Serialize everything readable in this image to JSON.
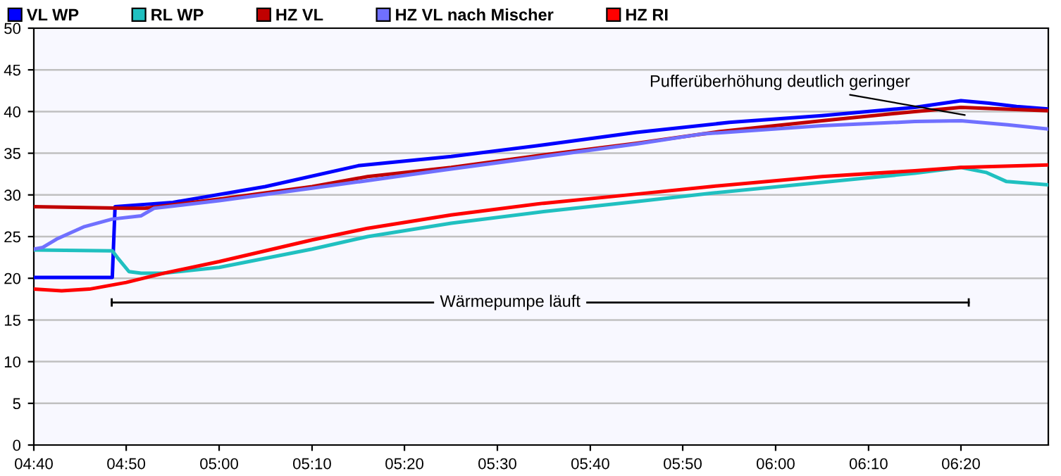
{
  "chart_data": {
    "type": "line",
    "series": [
      {
        "name": "VL WP",
        "color": "#0000ff",
        "x": [
          4.667,
          4.808,
          4.813,
          4.917,
          5.083,
          5.25,
          5.417,
          5.583,
          5.75,
          5.917,
          6.083,
          6.25,
          6.333,
          6.383,
          6.433,
          6.49
        ],
        "values": [
          20.1,
          20.1,
          28.6,
          29.1,
          31.0,
          33.5,
          34.6,
          36.0,
          37.5,
          38.7,
          39.5,
          40.5,
          41.3,
          41.0,
          40.6,
          40.3
        ]
      },
      {
        "name": "RL WP",
        "color": "#20c0c0",
        "x": [
          4.667,
          4.808,
          4.817,
          4.838,
          4.86,
          4.9,
          5.0,
          5.167,
          5.267,
          5.417,
          5.583,
          5.75,
          5.883,
          6.083,
          6.25,
          6.333,
          6.378,
          6.415,
          6.49
        ],
        "values": [
          23.4,
          23.3,
          22.5,
          20.8,
          20.6,
          20.6,
          21.3,
          23.5,
          25.0,
          26.6,
          28.0,
          29.2,
          30.2,
          31.5,
          32.6,
          33.3,
          32.7,
          31.6,
          31.2
        ]
      },
      {
        "name": "HZ VL",
        "color": "#c00000",
        "x": [
          4.667,
          4.833,
          4.867,
          5.0,
          5.167,
          5.267,
          5.417,
          5.583,
          5.75,
          5.9,
          6.083,
          6.25,
          6.333,
          6.49
        ],
        "values": [
          28.6,
          28.4,
          28.4,
          29.5,
          31.0,
          32.2,
          33.3,
          34.8,
          36.2,
          37.6,
          38.9,
          40.0,
          40.5,
          40.1
        ]
      },
      {
        "name": "HZ VL nach Mischer",
        "color": "#7070ff",
        "x": [
          4.667,
          4.683,
          4.708,
          4.758,
          4.808,
          4.86,
          4.883,
          5.0,
          5.167,
          5.417,
          5.583,
          5.75,
          5.867,
          6.083,
          6.25,
          6.333,
          6.417,
          6.49
        ],
        "values": [
          23.5,
          23.7,
          24.7,
          26.2,
          27.1,
          27.5,
          28.4,
          29.3,
          30.8,
          33.1,
          34.6,
          36.1,
          37.3,
          38.3,
          38.8,
          38.9,
          38.4,
          37.9
        ]
      },
      {
        "type": "line",
        "color": "#000000",
        "x": [
          4.807,
          6.347
        ],
        "values": [
          17.1,
          17.1
        ],
        "errors": [
          0.5,
          0.5
        ]
      },
      {
        "name": "HZ RI",
        "color": "#ff0000",
        "x": [
          4.667,
          4.717,
          4.767,
          4.833,
          4.9,
          5.0,
          5.167,
          5.267,
          5.417,
          5.583,
          5.75,
          5.883,
          6.083,
          6.25,
          6.333,
          6.49
        ],
        "values": [
          18.7,
          18.5,
          18.7,
          19.5,
          20.6,
          22.0,
          24.6,
          26.0,
          27.6,
          29.0,
          30.1,
          31.0,
          32.2,
          32.9,
          33.3,
          33.6
        ]
      }
    ],
    "xlim": [
      4.667,
      6.49
    ],
    "xticks": [
      {
        "value": 4.667,
        "label": "04:40"
      },
      {
        "value": 4.833,
        "label": "04:50"
      },
      {
        "value": 5.0,
        "label": "05:00"
      },
      {
        "value": 5.167,
        "label": "05:10"
      },
      {
        "value": 5.333,
        "label": "05:20"
      },
      {
        "value": 5.5,
        "label": "05:30"
      },
      {
        "value": 5.667,
        "label": "05:40"
      },
      {
        "value": 5.833,
        "label": "05:50"
      },
      {
        "value": 6.0,
        "label": "06:00"
      },
      {
        "value": 6.167,
        "label": "06:10"
      },
      {
        "value": 6.333,
        "label": "06:20"
      }
    ],
    "ylim": [
      0,
      50
    ],
    "yticks": [
      0,
      5,
      10,
      15,
      20,
      25,
      30,
      35,
      40,
      45,
      50
    ],
    "grid": "y",
    "legend": "top left",
    "marker": "none",
    "line_style": "solid",
    "annotations": [
      {
        "text": "Pufferüberhöhung deutlich geringer",
        "x": 6.347,
        "y": 39.5
      },
      {
        "text": "Wärmepumpe läuft",
        "x": 5.523,
        "y": 17.1
      }
    ]
  }
}
